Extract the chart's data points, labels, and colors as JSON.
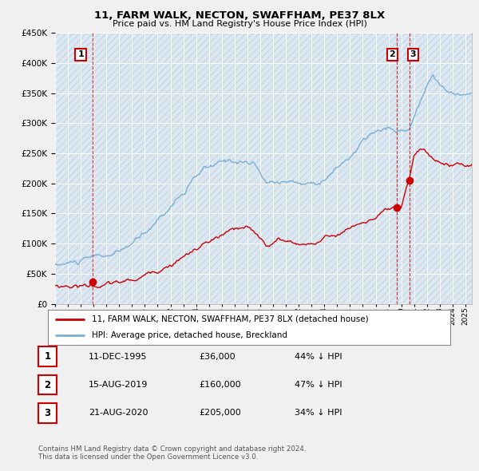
{
  "title": "11, FARM WALK, NECTON, SWAFFHAM, PE37 8LX",
  "subtitle": "Price paid vs. HM Land Registry's House Price Index (HPI)",
  "legend_line1": "11, FARM WALK, NECTON, SWAFFHAM, PE37 8LX (detached house)",
  "legend_line2": "HPI: Average price, detached house, Breckland",
  "footer1": "Contains HM Land Registry data © Crown copyright and database right 2024.",
  "footer2": "This data is licensed under the Open Government Licence v3.0.",
  "transactions": [
    {
      "label": "1",
      "date": "11-DEC-1995",
      "price": 36000,
      "pct": "44% ↓ HPI"
    },
    {
      "label": "2",
      "date": "15-AUG-2019",
      "price": 160000,
      "pct": "47% ↓ HPI"
    },
    {
      "label": "3",
      "date": "21-AUG-2020",
      "price": 205000,
      "pct": "34% ↓ HPI"
    }
  ],
  "transaction_years": [
    1995.95,
    2019.62,
    2020.64
  ],
  "transaction_prices": [
    36000,
    160000,
    205000
  ],
  "ylim": [
    0,
    450000
  ],
  "xlim_start": 1993.0,
  "xlim_end": 2025.5,
  "hpi_color": "#7bafd4",
  "price_color": "#CC0000",
  "bg_color": "#f0f0f0",
  "plot_bg": "#dde8f0",
  "hatch_color": "#c8d8e8"
}
